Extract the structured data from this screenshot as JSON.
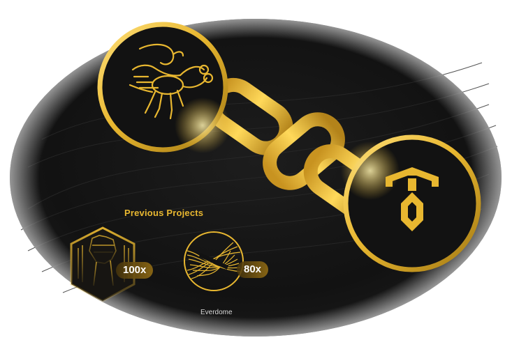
{
  "colors": {
    "background": "#ffffff",
    "oval": "#141414",
    "gold": "#e8b730",
    "gold_light": "#ffe07a",
    "gold_dark": "#a47a14"
  },
  "hero": {
    "left_badge_icon": "scorpion-icon",
    "right_badge_icon": "token-logo-icon",
    "connector_icon": "chain-link-icon"
  },
  "previous_projects": {
    "heading": "Previous Projects",
    "items": [
      {
        "icon": "raised-fist-hexagon-icon",
        "multiplier": "100x",
        "name": ""
      },
      {
        "icon": "everdome-wave-icon",
        "multiplier": "80x",
        "name": "Everdome"
      }
    ]
  }
}
